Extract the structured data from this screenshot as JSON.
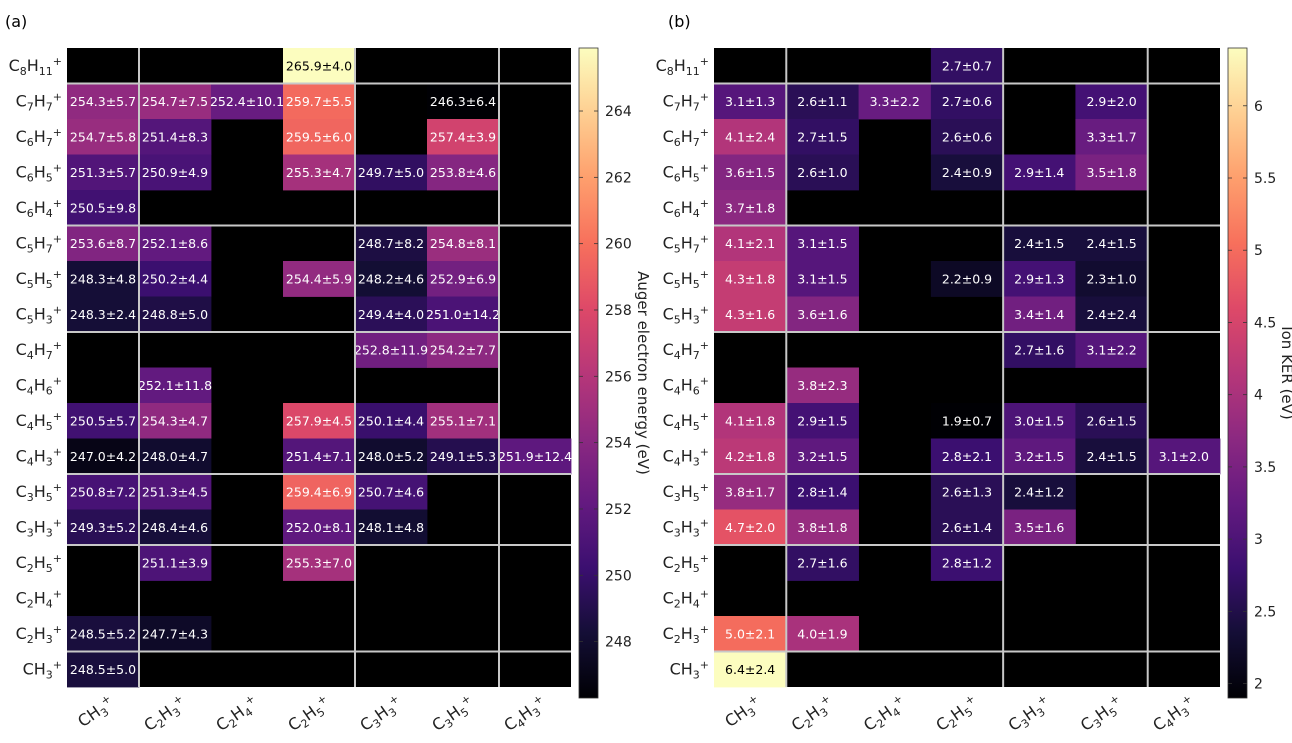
{
  "chart_data": [
    {
      "type": "heatmap",
      "panel_label": "(a)",
      "rows": [
        "C8H11+",
        "C7H7+",
        "C6H7+",
        "C6H5+",
        "C6H4+",
        "C5H7+",
        "C5H5+",
        "C5H3+",
        "C4H7+",
        "C4H6+",
        "C4H5+",
        "C4H3+",
        "C3H5+",
        "C3H3+",
        "C2H5+",
        "C2H4+",
        "C2H3+",
        "CH3+"
      ],
      "row_labels": [
        {
          "base": "C",
          "n1": "8",
          "h": "H",
          "n2": "11",
          "sup": "+"
        },
        {
          "base": "C",
          "n1": "7",
          "h": "H",
          "n2": "7",
          "sup": "+"
        },
        {
          "base": "C",
          "n1": "6",
          "h": "H",
          "n2": "7",
          "sup": "+"
        },
        {
          "base": "C",
          "n1": "6",
          "h": "H",
          "n2": "5",
          "sup": "+"
        },
        {
          "base": "C",
          "n1": "6",
          "h": "H",
          "n2": "4",
          "sup": "+"
        },
        {
          "base": "C",
          "n1": "5",
          "h": "H",
          "n2": "7",
          "sup": "+"
        },
        {
          "base": "C",
          "n1": "5",
          "h": "H",
          "n2": "5",
          "sup": "+"
        },
        {
          "base": "C",
          "n1": "5",
          "h": "H",
          "n2": "3",
          "sup": "+"
        },
        {
          "base": "C",
          "n1": "4",
          "h": "H",
          "n2": "7",
          "sup": "+"
        },
        {
          "base": "C",
          "n1": "4",
          "h": "H",
          "n2": "6",
          "sup": "+"
        },
        {
          "base": "C",
          "n1": "4",
          "h": "H",
          "n2": "5",
          "sup": "+"
        },
        {
          "base": "C",
          "n1": "4",
          "h": "H",
          "n2": "3",
          "sup": "+"
        },
        {
          "base": "C",
          "n1": "3",
          "h": "H",
          "n2": "5",
          "sup": "+"
        },
        {
          "base": "C",
          "n1": "3",
          "h": "H",
          "n2": "3",
          "sup": "+"
        },
        {
          "base": "C",
          "n1": "2",
          "h": "H",
          "n2": "5",
          "sup": "+"
        },
        {
          "base": "C",
          "n1": "2",
          "h": "H",
          "n2": "4",
          "sup": "+"
        },
        {
          "base": "C",
          "n1": "2",
          "h": "H",
          "n2": "3",
          "sup": "+"
        },
        {
          "base": "CH",
          "n1": "",
          "h": "",
          "n2": "3",
          "sup": "+"
        }
      ],
      "columns": [
        "CH3+",
        "C2H3+",
        "C2H4+",
        "C2H5+",
        "C3H3+",
        "C3H5+",
        "C4H3+"
      ],
      "col_labels": [
        {
          "base": "CH",
          "n1": "",
          "h": "",
          "n2": "3",
          "sup": "+"
        },
        {
          "base": "C",
          "n1": "2",
          "h": "H",
          "n2": "3",
          "sup": "+"
        },
        {
          "base": "C",
          "n1": "2",
          "h": "H",
          "n2": "4",
          "sup": "+"
        },
        {
          "base": "C",
          "n1": "2",
          "h": "H",
          "n2": "5",
          "sup": "+"
        },
        {
          "base": "C",
          "n1": "3",
          "h": "H",
          "n2": "3",
          "sup": "+"
        },
        {
          "base": "C",
          "n1": "3",
          "h": "H",
          "n2": "5",
          "sup": "+"
        },
        {
          "base": "C",
          "n1": "4",
          "h": "H",
          "n2": "3",
          "sup": "+"
        }
      ],
      "row_group_breaks": [
        1,
        5,
        8,
        12,
        14,
        17
      ],
      "col_group_breaks": [
        1,
        4,
        6
      ],
      "values": [
        [
          null,
          null,
          null,
          265.9,
          null,
          null,
          null
        ],
        [
          254.3,
          254.7,
          252.4,
          259.7,
          null,
          246.3,
          null
        ],
        [
          254.7,
          251.4,
          null,
          259.5,
          null,
          257.4,
          null
        ],
        [
          251.3,
          250.9,
          null,
          255.3,
          249.7,
          253.8,
          null
        ],
        [
          250.5,
          null,
          null,
          null,
          null,
          null,
          null
        ],
        [
          253.6,
          252.1,
          null,
          null,
          248.7,
          254.8,
          null
        ],
        [
          248.3,
          250.2,
          null,
          254.4,
          248.2,
          252.9,
          null
        ],
        [
          248.3,
          248.8,
          null,
          null,
          249.4,
          251.0,
          null
        ],
        [
          null,
          null,
          null,
          null,
          252.8,
          254.2,
          null
        ],
        [
          null,
          252.1,
          null,
          null,
          null,
          null,
          null
        ],
        [
          250.5,
          254.3,
          null,
          257.9,
          250.1,
          255.1,
          null
        ],
        [
          247.0,
          248.0,
          null,
          251.4,
          248.0,
          249.1,
          251.9
        ],
        [
          250.8,
          251.3,
          null,
          259.4,
          250.7,
          null,
          null
        ],
        [
          249.3,
          248.4,
          null,
          252.0,
          248.1,
          null,
          null
        ],
        [
          null,
          251.1,
          null,
          255.3,
          null,
          null,
          null
        ],
        [
          null,
          null,
          null,
          null,
          null,
          null,
          null
        ],
        [
          248.5,
          247.7,
          null,
          null,
          null,
          null,
          null
        ],
        [
          248.5,
          null,
          null,
          null,
          null,
          null,
          null
        ]
      ],
      "labels": [
        [
          null,
          null,
          null,
          "265.9±4.0",
          null,
          null,
          null
        ],
        [
          "254.3±5.7",
          "254.7±7.5",
          "252.4±10.1",
          "259.7±5.5",
          null,
          "246.3±6.4",
          null
        ],
        [
          "254.7±5.8",
          "251.4±8.3",
          null,
          "259.5±6.0",
          null,
          "257.4±3.9",
          null
        ],
        [
          "251.3±5.7",
          "250.9±4.9",
          null,
          "255.3±4.7",
          "249.7±5.0",
          "253.8±4.6",
          null
        ],
        [
          "250.5±9.8",
          null,
          null,
          null,
          null,
          null,
          null
        ],
        [
          "253.6±8.7",
          "252.1±8.6",
          null,
          null,
          "248.7±8.2",
          "254.8±8.1",
          null
        ],
        [
          "248.3±4.8",
          "250.2±4.4",
          null,
          "254.4±5.9",
          "248.2±4.6",
          "252.9±6.9",
          null
        ],
        [
          "248.3±2.4",
          "248.8±5.0",
          null,
          null,
          "249.4±4.0",
          "251.0±14.2",
          null
        ],
        [
          null,
          null,
          null,
          null,
          "252.8±11.9",
          "254.2±7.7",
          null
        ],
        [
          null,
          "252.1±11.8",
          null,
          null,
          null,
          null,
          null
        ],
        [
          "250.5±5.7",
          "254.3±4.7",
          null,
          "257.9±4.5",
          "250.1±4.4",
          "255.1±7.1",
          null
        ],
        [
          "247.0±4.2",
          "248.0±4.7",
          null,
          "251.4±7.1",
          "248.0±5.2",
          "249.1±5.3",
          "251.9±12.4"
        ],
        [
          "250.8±7.2",
          "251.3±4.5",
          null,
          "259.4±6.9",
          "250.7±4.6",
          null,
          null
        ],
        [
          "249.3±5.2",
          "248.4±4.6",
          null,
          "252.0±8.1",
          "248.1±4.8",
          null,
          null
        ],
        [
          null,
          "251.1±3.9",
          null,
          "255.3±7.0",
          null,
          null,
          null
        ],
        [
          null,
          null,
          null,
          null,
          null,
          null,
          null
        ],
        [
          "248.5±5.2",
          "247.7±4.3",
          null,
          null,
          null,
          null,
          null
        ],
        [
          "248.5±5.0",
          null,
          null,
          null,
          null,
          null,
          null
        ]
      ],
      "colorbar": {
        "label": "Auger electron energy (eV)",
        "range": [
          246.3,
          265.9
        ],
        "ticks": [
          248,
          250,
          252,
          254,
          256,
          258,
          260,
          262,
          264
        ],
        "colormap": "magma"
      }
    },
    {
      "type": "heatmap",
      "panel_label": "(b)",
      "rows": [
        "C8H11+",
        "C7H7+",
        "C6H7+",
        "C6H5+",
        "C6H4+",
        "C5H7+",
        "C5H5+",
        "C5H3+",
        "C4H7+",
        "C4H6+",
        "C4H5+",
        "C4H3+",
        "C3H5+",
        "C3H3+",
        "C2H5+",
        "C2H4+",
        "C2H3+",
        "CH3+"
      ],
      "columns": [
        "CH3+",
        "C2H3+",
        "C2H4+",
        "C2H5+",
        "C3H3+",
        "C3H5+",
        "C4H3+"
      ],
      "row_group_breaks": [
        1,
        5,
        8,
        12,
        14,
        17
      ],
      "col_group_breaks": [
        1,
        4,
        6
      ],
      "values": [
        [
          null,
          null,
          null,
          2.7,
          null,
          null,
          null
        ],
        [
          3.1,
          2.6,
          3.3,
          2.7,
          null,
          2.9,
          null
        ],
        [
          4.1,
          2.7,
          null,
          2.6,
          null,
          3.3,
          null
        ],
        [
          3.6,
          2.6,
          null,
          2.4,
          2.9,
          3.5,
          null
        ],
        [
          3.7,
          null,
          null,
          null,
          null,
          null,
          null
        ],
        [
          4.1,
          3.1,
          null,
          null,
          2.4,
          2.4,
          null
        ],
        [
          4.3,
          3.1,
          null,
          2.2,
          2.9,
          2.3,
          null
        ],
        [
          4.3,
          3.6,
          null,
          null,
          3.4,
          2.4,
          null
        ],
        [
          null,
          null,
          null,
          null,
          2.7,
          3.1,
          null
        ],
        [
          null,
          3.8,
          null,
          null,
          null,
          null,
          null
        ],
        [
          4.1,
          2.9,
          null,
          1.9,
          3.0,
          2.6,
          null
        ],
        [
          4.2,
          3.2,
          null,
          2.8,
          3.2,
          2.4,
          3.1
        ],
        [
          3.8,
          2.8,
          null,
          2.6,
          2.4,
          null,
          null
        ],
        [
          4.7,
          3.8,
          null,
          2.6,
          3.5,
          null,
          null
        ],
        [
          null,
          2.7,
          null,
          2.8,
          null,
          null,
          null
        ],
        [
          null,
          null,
          null,
          null,
          null,
          null,
          null
        ],
        [
          5.0,
          4.0,
          null,
          null,
          null,
          null,
          null
        ],
        [
          6.4,
          null,
          null,
          null,
          null,
          null,
          null
        ]
      ],
      "labels": [
        [
          null,
          null,
          null,
          "2.7±0.7",
          null,
          null,
          null
        ],
        [
          "3.1±1.3",
          "2.6±1.1",
          "3.3±2.2",
          "2.7±0.6",
          null,
          "2.9±2.0",
          null
        ],
        [
          "4.1±2.4",
          "2.7±1.5",
          null,
          "2.6±0.6",
          null,
          "3.3±1.7",
          null
        ],
        [
          "3.6±1.5",
          "2.6±1.0",
          null,
          "2.4±0.9",
          "2.9±1.4",
          "3.5±1.8",
          null
        ],
        [
          "3.7±1.8",
          null,
          null,
          null,
          null,
          null,
          null
        ],
        [
          "4.1±2.1",
          "3.1±1.5",
          null,
          null,
          "2.4±1.5",
          "2.4±1.5",
          null
        ],
        [
          "4.3±1.8",
          "3.1±1.5",
          null,
          "2.2±0.9",
          "2.9±1.3",
          "2.3±1.0",
          null
        ],
        [
          "4.3±1.6",
          "3.6±1.6",
          null,
          null,
          "3.4±1.4",
          "2.4±2.4",
          null
        ],
        [
          null,
          null,
          null,
          null,
          "2.7±1.6",
          "3.1±2.2",
          null
        ],
        [
          null,
          "3.8±2.3",
          null,
          null,
          null,
          null,
          null
        ],
        [
          "4.1±1.8",
          "2.9±1.5",
          null,
          "1.9±0.7",
          "3.0±1.5",
          "2.6±1.5",
          null
        ],
        [
          "4.2±1.8",
          "3.2±1.5",
          null,
          "2.8±2.1",
          "3.2±1.5",
          "2.4±1.5",
          "3.1±2.0"
        ],
        [
          "3.8±1.7",
          "2.8±1.4",
          null,
          "2.6±1.3",
          "2.4±1.2",
          null,
          null
        ],
        [
          "4.7±2.0",
          "3.8±1.8",
          null,
          "2.6±1.4",
          "3.5±1.6",
          null,
          null
        ],
        [
          null,
          "2.7±1.6",
          null,
          "2.8±1.2",
          null,
          null,
          null
        ],
        [
          null,
          null,
          null,
          null,
          null,
          null,
          null
        ],
        [
          "5.0±2.1",
          "4.0±1.9",
          null,
          null,
          null,
          null,
          null
        ],
        [
          "6.4±2.4",
          null,
          null,
          null,
          null,
          null,
          null
        ]
      ],
      "colorbar": {
        "label": "Ion KER (eV)",
        "range": [
          1.9,
          6.4
        ],
        "ticks": [
          "2",
          "2.5",
          "3",
          "3.5",
          "4",
          "4.5",
          "5",
          "5.5",
          "6"
        ],
        "tick_values": [
          2,
          2.5,
          3,
          3.5,
          4,
          4.5,
          5,
          5.5,
          6
        ],
        "colormap": "magma"
      }
    }
  ]
}
